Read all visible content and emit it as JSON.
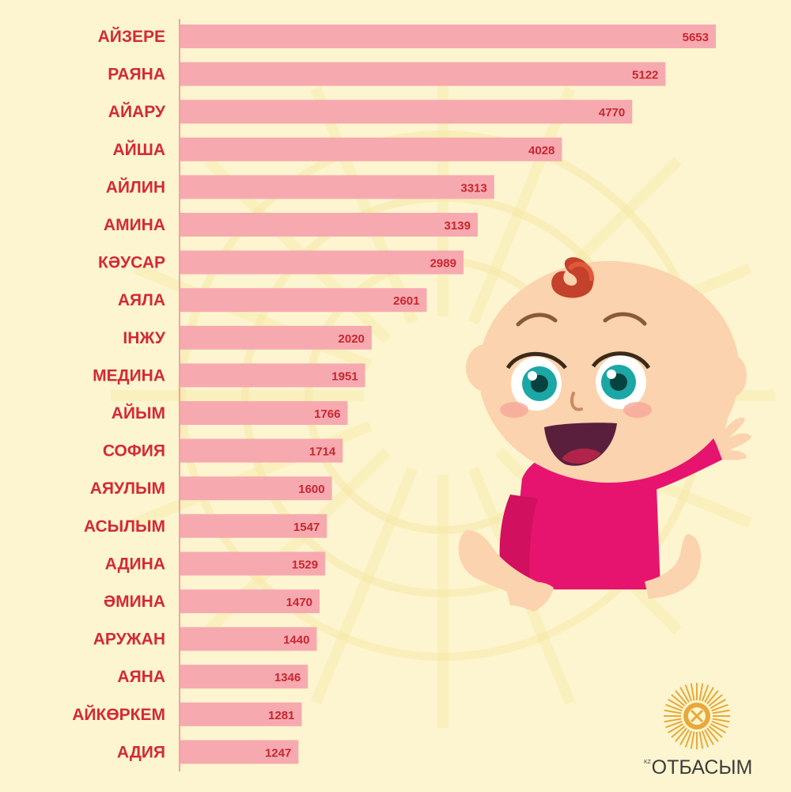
{
  "chart_data": {
    "type": "bar",
    "orientation": "horizontal",
    "categories": [
      "АЙЗЕРЕ",
      "РАЯНА",
      "АЙАРУ",
      "АЙША",
      "АЙЛИН",
      "АМИНА",
      "КӘУСАР",
      "АЯЛА",
      "ІНЖУ",
      "МЕДИНА",
      "АЙЫМ",
      "СОФИЯ",
      "АЯУЛЫМ",
      "АСЫЛЫМ",
      "АДИНА",
      "ӘМИНА",
      "АРУЖАН",
      "АЯНА",
      "АЙКӨРКЕМ",
      "АДИЯ"
    ],
    "values": [
      5653,
      5122,
      4770,
      4028,
      3313,
      3139,
      2989,
      2601,
      2020,
      1951,
      1766,
      1714,
      1600,
      1547,
      1529,
      1470,
      1440,
      1346,
      1281,
      1247
    ],
    "value_labels": [
      "5653",
      "5122",
      "4770",
      "4028",
      "3313",
      "3139",
      "2989",
      "2601",
      "2020",
      "1951",
      "1766",
      "1714",
      "1600",
      "1547",
      "1529",
      "1470",
      "1440",
      "1346",
      "1281",
      "1247"
    ],
    "xlim": [
      0,
      5653
    ],
    "grid": false,
    "legend": "none",
    "colors": {
      "bar": "#f7a9b0",
      "label": "#d42a35",
      "value": "#c8262f",
      "axis": "#f4a0a8",
      "background": "#fdf5cf"
    }
  },
  "logo": {
    "text": "ОТБАСЫМ",
    "kz": "KZ",
    "icon": "sun-ornament-icon"
  },
  "illustration": {
    "icon": "waving-baby-illustration"
  }
}
